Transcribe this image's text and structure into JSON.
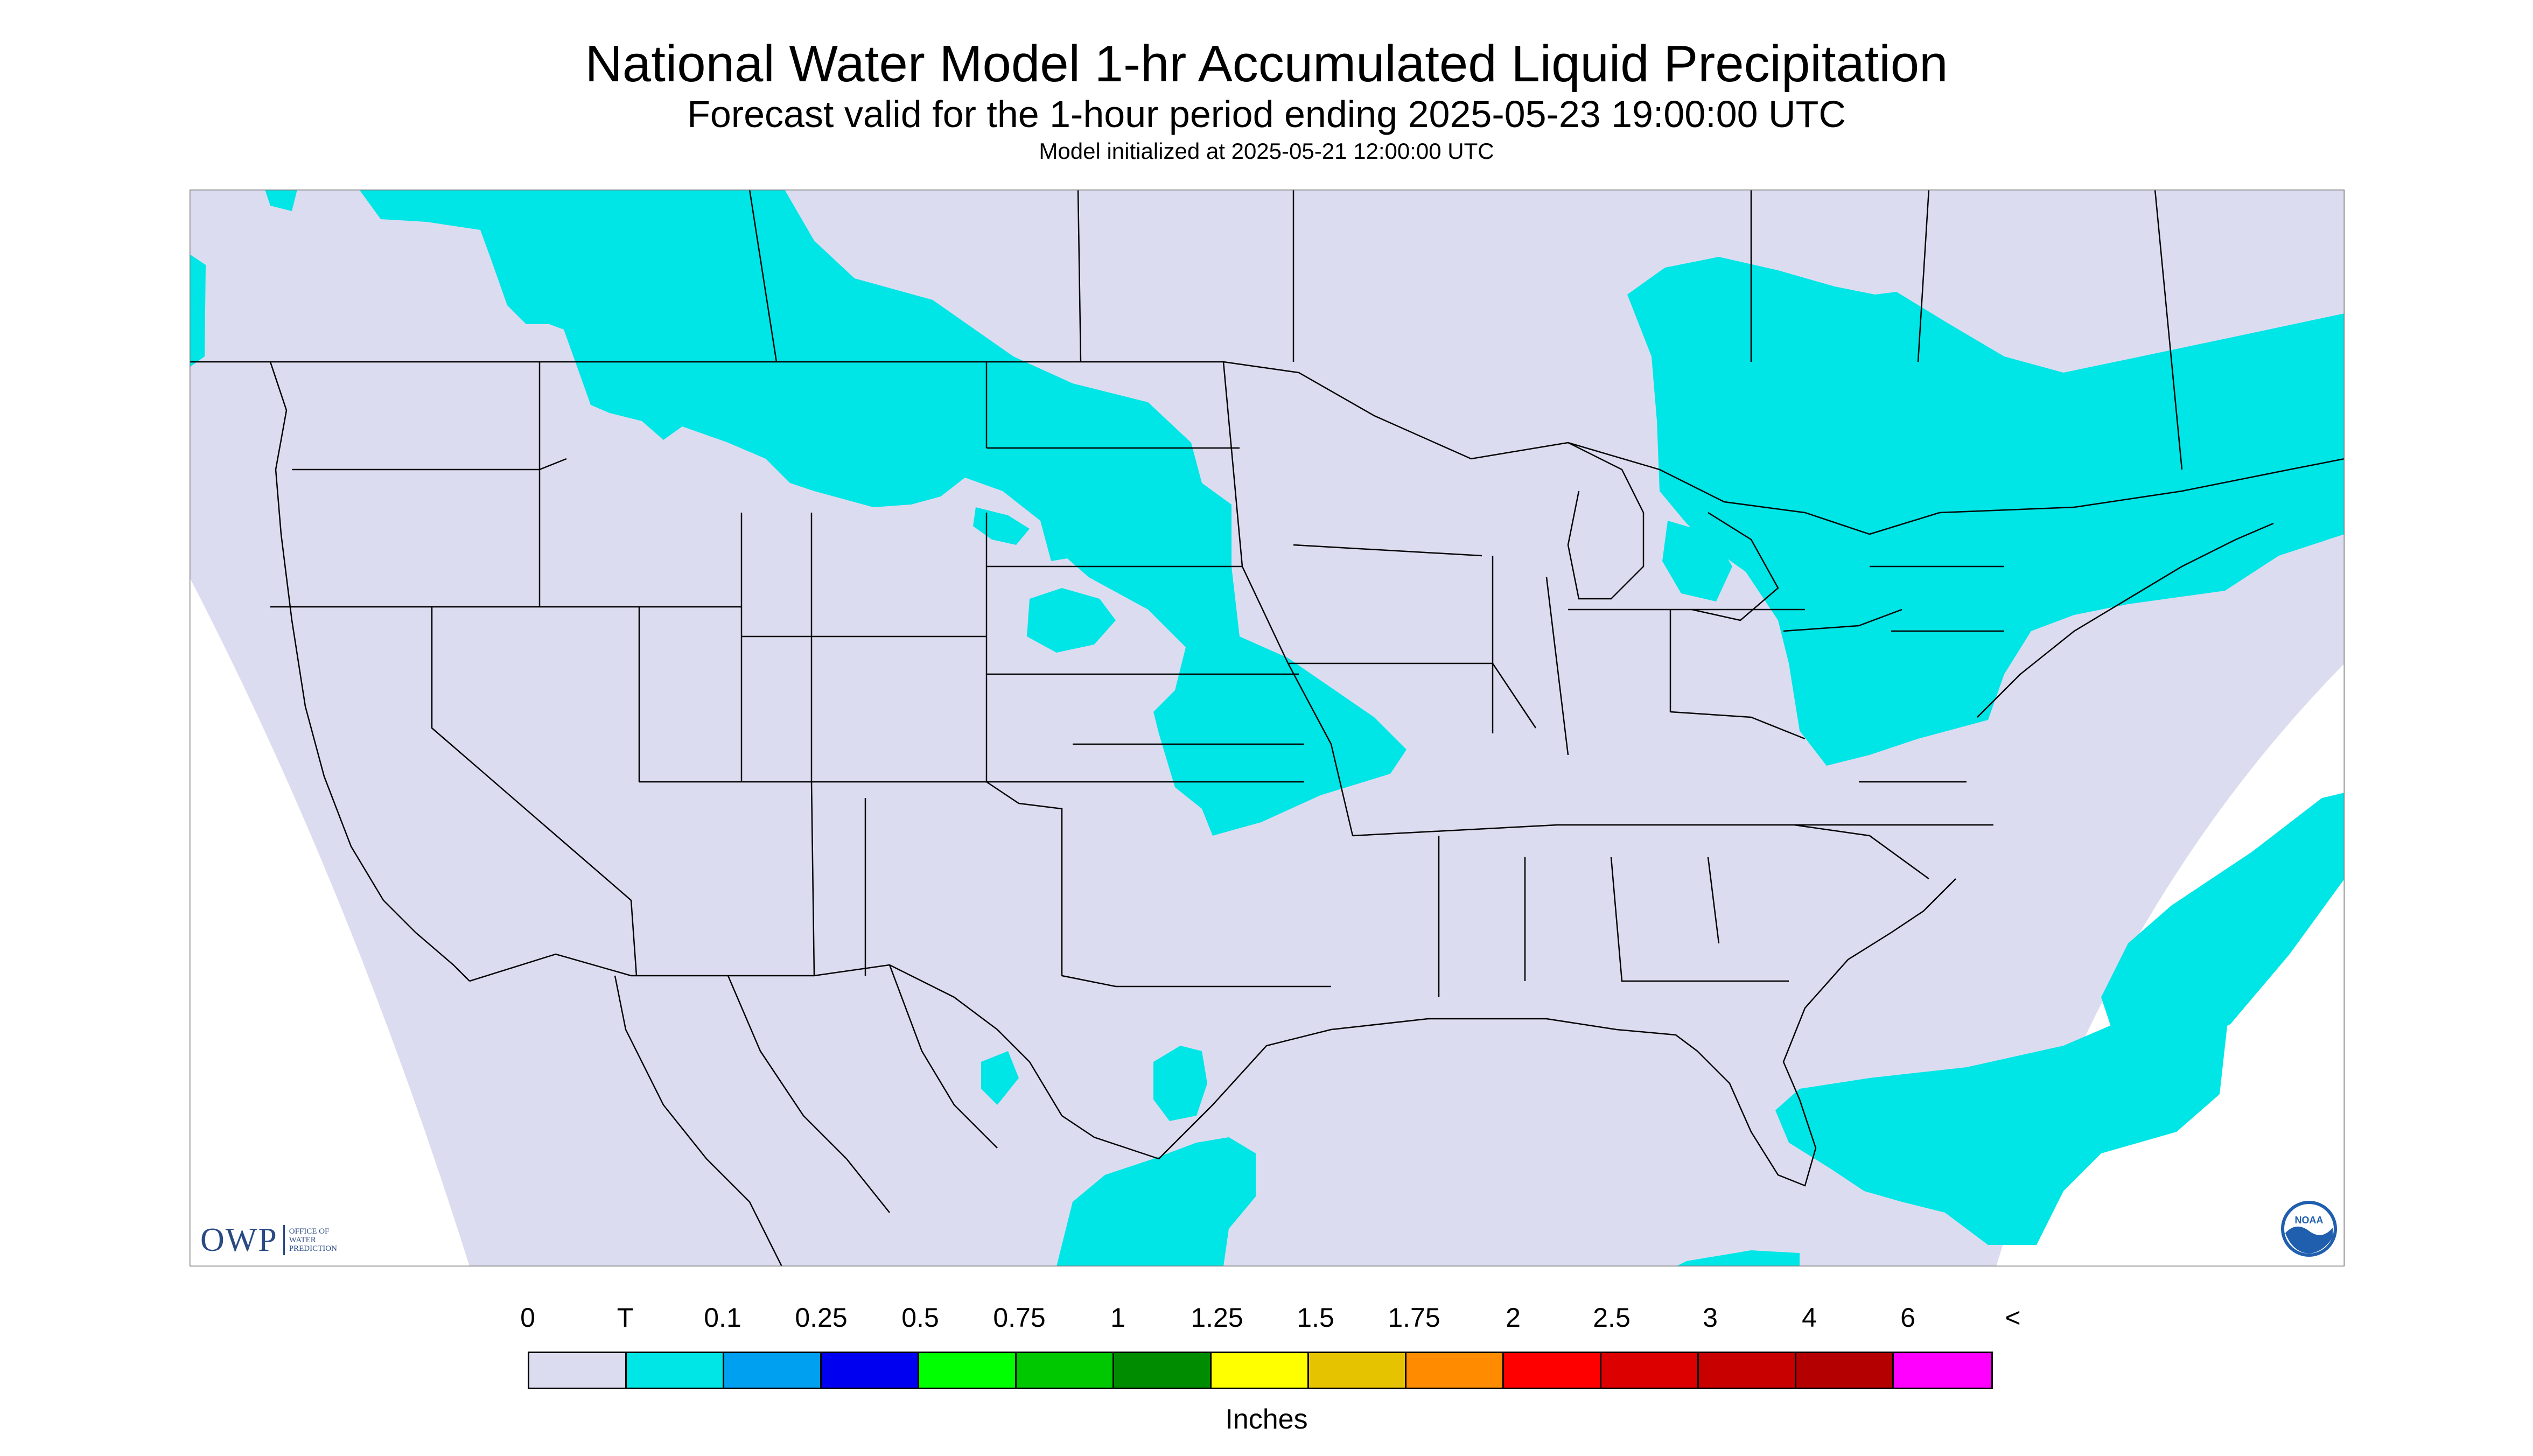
{
  "header": {
    "title": "National Water Model 1-hr Accumulated Liquid Precipitation",
    "subtitle": "Forecast valid for the 1-hour period ending 2025-05-23 19:00:00 UTC",
    "init": "Model initialized at 2025-05-21 12:00:00 UTC"
  },
  "logos": {
    "owp_mark": "OWP",
    "owp_text": [
      "OFFICE OF",
      "WATER",
      "PREDICTION"
    ],
    "noaa_label": "NOAA"
  },
  "colors": {
    "no_data": "#dcdcf0",
    "map_bg": "#dcdcf0",
    "outer": "#ffffff",
    "precip_trace": "#00e5e5",
    "boundary": "#000000"
  },
  "legend": {
    "labels": [
      "0",
      "T",
      "0.1",
      "0.25",
      "0.5",
      "0.75",
      "1",
      "1.25",
      "1.5",
      "1.75",
      "2",
      "2.5",
      "3",
      "4",
      "6",
      "<"
    ],
    "colors": [
      "#dcdcf0",
      "#00e5e5",
      "#00a0f0",
      "#0000f0",
      "#00ff00",
      "#00c800",
      "#008c00",
      "#ffff00",
      "#e6c300",
      "#ff8c00",
      "#ff0000",
      "#dc0000",
      "#c80000",
      "#b40000",
      "#ff00ff",
      "#9955cc"
    ],
    "units": "Inches"
  }
}
